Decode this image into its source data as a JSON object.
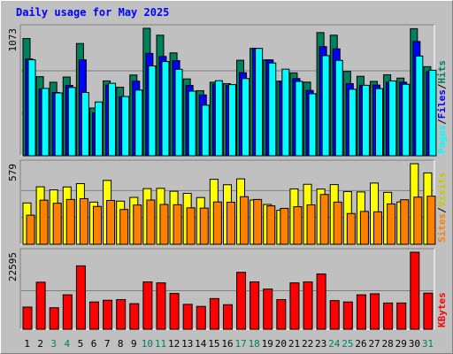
{
  "title": "Daily usage for May 2025",
  "chart_data": [
    {
      "type": "bar",
      "panel": "hits-files-pages",
      "categories": [
        "1",
        "2",
        "3",
        "4",
        "5",
        "6",
        "7",
        "8",
        "9",
        "10",
        "11",
        "12",
        "13",
        "14",
        "15",
        "16",
        "17",
        "18",
        "19",
        "20",
        "21",
        "22",
        "23",
        "24",
        "25",
        "26",
        "27",
        "28",
        "29",
        "30",
        "31"
      ],
      "max_label": "1073",
      "ylim": [
        0,
        1073
      ],
      "weekend_days": [
        "3",
        "4",
        "10",
        "11",
        "17",
        "18",
        "24",
        "25",
        "31"
      ],
      "series": [
        {
          "name": "Hits",
          "color": "#00805c",
          "values": [
            987,
            666,
            619,
            663,
            945,
            402,
            630,
            577,
            680,
            1073,
            1015,
            866,
            647,
            548,
            619,
            607,
            804,
            904,
            807,
            628,
            698,
            620,
            1037,
            1015,
            710,
            669,
            626,
            682,
            654,
            1070,
            750
          ]
        },
        {
          "name": "Files",
          "color": "#0000ff",
          "values": [
            815,
            561,
            533,
            592,
            808,
            361,
            595,
            496,
            628,
            862,
            836,
            801,
            592,
            512,
            602,
            590,
            699,
            904,
            807,
            628,
            650,
            550,
            919,
            900,
            607,
            593,
            595,
            618,
            619,
            962,
            707
          ]
        },
        {
          "name": "Pages",
          "color": "#00ffff",
          "values": [
            808,
            567,
            529,
            575,
            533,
            453,
            610,
            499,
            553,
            756,
            793,
            728,
            544,
            426,
            632,
            599,
            650,
            904,
            781,
            729,
            626,
            522,
            843,
            803,
            560,
            593,
            565,
            630,
            602,
            840,
            720
          ]
        }
      ]
    },
    {
      "type": "bar",
      "panel": "visits-sites",
      "categories": [
        "1",
        "2",
        "3",
        "4",
        "5",
        "6",
        "7",
        "8",
        "9",
        "10",
        "11",
        "12",
        "13",
        "14",
        "15",
        "16",
        "17",
        "18",
        "19",
        "20",
        "21",
        "22",
        "23",
        "24",
        "25",
        "26",
        "27",
        "28",
        "29",
        "30",
        "31"
      ],
      "max_label": "579",
      "ylim": [
        0,
        579
      ],
      "series": [
        {
          "name": "Visits",
          "color": "#ffff00",
          "values": [
            297,
            413,
            391,
            412,
            436,
            303,
            459,
            310,
            337,
            400,
            402,
            381,
            366,
            336,
            467,
            428,
            470,
            318,
            286,
            244,
            398,
            431,
            397,
            429,
            379,
            376,
            440,
            373,
            304,
            579,
            513
          ]
        },
        {
          "name": "Sites",
          "color": "#ff8000",
          "values": [
            209,
            317,
            295,
            322,
            328,
            272,
            315,
            250,
            282,
            318,
            286,
            284,
            262,
            260,
            304,
            302,
            342,
            322,
            276,
            258,
            270,
            283,
            358,
            303,
            221,
            236,
            233,
            290,
            320,
            339,
            346
          ]
        }
      ]
    },
    {
      "type": "bar",
      "panel": "kbytes",
      "categories": [
        "1",
        "2",
        "3",
        "4",
        "5",
        "6",
        "7",
        "8",
        "9",
        "10",
        "11",
        "12",
        "13",
        "14",
        "15",
        "16",
        "17",
        "18",
        "19",
        "20",
        "21",
        "22",
        "23",
        "24",
        "25",
        "26",
        "27",
        "28",
        "29",
        "30",
        "31"
      ],
      "max_label": "22595",
      "ylim": [
        0,
        22595
      ],
      "series": [
        {
          "name": "KBytes",
          "color": "#ff0000",
          "values": [
            6500,
            13800,
            6300,
            10100,
            18600,
            8000,
            8500,
            8700,
            7500,
            13900,
            13600,
            10500,
            7300,
            6700,
            9000,
            7200,
            16700,
            13900,
            11800,
            8700,
            13600,
            13900,
            16200,
            8400,
            8000,
            10100,
            10400,
            7700,
            7700,
            22595,
            10600
          ]
        }
      ]
    }
  ]
}
